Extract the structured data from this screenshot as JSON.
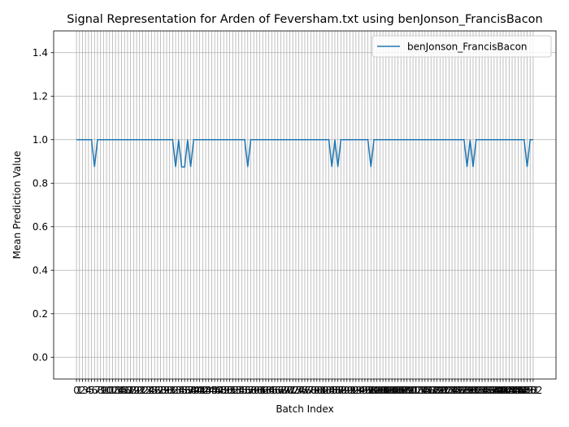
{
  "chart_data": {
    "type": "line",
    "title": "Signal Representation for Arden of Feversham.txt using benJonson_FrancisBacon",
    "xlabel": "Batch Index",
    "ylabel": "Mean Prediction Value",
    "x": [
      0,
      1,
      2,
      3,
      4,
      5,
      6,
      7,
      8,
      9,
      10,
      11,
      12,
      13,
      14,
      15,
      16,
      17,
      18,
      19,
      20,
      21,
      22,
      23,
      24,
      25,
      26,
      27,
      28,
      29,
      30,
      31,
      32,
      33,
      34,
      35,
      36,
      37,
      38,
      39,
      40,
      41,
      42,
      43,
      44,
      45,
      46,
      47,
      48,
      49,
      50,
      51,
      52,
      53,
      54,
      55,
      56,
      57,
      58,
      59,
      60,
      61,
      62,
      63,
      64,
      65,
      66,
      67,
      68,
      69,
      70,
      71,
      72,
      73,
      74,
      75,
      76,
      77,
      78,
      79,
      80,
      81,
      82,
      83,
      84,
      85,
      86,
      87,
      88,
      89,
      90,
      91,
      92,
      93,
      94,
      95,
      96,
      97,
      98,
      99,
      100,
      101,
      102,
      103,
      104,
      105,
      106,
      107,
      108,
      109,
      110,
      111,
      112,
      113,
      114,
      115,
      116,
      117,
      118,
      119,
      120,
      121,
      122,
      123,
      124,
      125,
      126,
      127,
      128,
      129,
      130,
      131,
      132,
      133,
      134,
      135,
      136,
      137,
      138,
      139,
      140,
      141,
      142,
      143,
      144,
      145,
      146,
      147,
      148,
      149,
      150,
      151,
      152
    ],
    "series": [
      {
        "name": "benJonson_FrancisBacon",
        "color": "#1f77b4",
        "values": [
          1,
          1,
          1,
          1,
          1,
          1,
          0.875,
          1,
          1,
          1,
          1,
          1,
          1,
          1,
          1,
          1,
          1,
          1,
          1,
          1,
          1,
          1,
          1,
          1,
          1,
          1,
          1,
          1,
          1,
          1,
          1,
          1,
          1,
          0.875,
          1,
          0.875,
          0.875,
          1,
          0.875,
          1,
          1,
          1,
          1,
          1,
          1,
          1,
          1,
          1,
          1,
          1,
          1,
          1,
          1,
          1,
          1,
          1,
          1,
          0.875,
          1,
          1,
          1,
          1,
          1,
          1,
          1,
          1,
          1,
          1,
          1,
          1,
          1,
          1,
          1,
          1,
          1,
          1,
          1,
          1,
          1,
          1,
          1,
          1,
          1,
          1,
          1,
          0.875,
          1,
          0.875,
          1,
          1,
          1,
          1,
          1,
          1,
          1,
          1,
          1,
          1,
          0.875,
          1,
          1,
          1,
          1,
          1,
          1,
          1,
          1,
          1,
          1,
          1,
          1,
          1,
          1,
          1,
          1,
          1,
          1,
          1,
          1,
          1,
          1,
          1,
          1,
          1,
          1,
          1,
          1,
          1,
          1,
          1,
          0.875,
          1,
          0.875,
          1,
          1,
          1,
          1,
          1,
          1,
          1,
          1,
          1,
          1,
          1,
          1,
          1,
          1,
          1,
          1,
          1,
          0.875,
          1,
          1
        ]
      }
    ],
    "xlim": [
      -7.6,
      159.6
    ],
    "xticks": [
      0,
      1,
      2,
      3,
      4,
      5,
      6,
      7,
      8,
      9,
      10,
      11,
      12,
      13,
      14,
      15,
      16,
      17,
      18,
      19,
      20,
      21,
      22,
      23,
      24,
      25,
      26,
      27,
      28,
      29,
      30,
      31,
      32,
      33,
      34,
      35,
      36,
      37,
      38,
      39,
      40,
      41,
      42,
      43,
      44,
      45,
      46,
      47,
      48,
      49,
      50,
      51,
      52,
      53,
      54,
      55,
      56,
      57,
      58,
      59,
      60,
      61,
      62,
      63,
      64,
      65,
      66,
      67,
      68,
      69,
      70,
      71,
      72,
      73,
      74,
      75,
      76,
      77,
      78,
      79,
      80,
      81,
      82,
      83,
      84,
      85,
      86,
      87,
      88,
      89,
      90,
      91,
      92,
      93,
      94,
      95,
      96,
      97,
      98,
      99,
      100,
      101,
      102,
      103,
      104,
      105,
      106,
      107,
      108,
      109,
      110,
      111,
      112,
      113,
      114,
      115,
      116,
      117,
      118,
      119,
      120,
      121,
      122,
      123,
      124,
      125,
      126,
      127,
      128,
      129,
      130,
      131,
      132,
      133,
      134,
      135,
      136,
      137,
      138,
      139,
      140,
      141,
      142,
      143,
      144,
      145,
      146,
      147,
      148,
      149,
      150,
      151,
      152
    ],
    "ylim": [
      -0.1,
      1.5
    ],
    "yticks": [
      {
        "value": 0,
        "label": "0.0"
      },
      {
        "value": 0.2,
        "label": "0.2"
      },
      {
        "value": 0.4,
        "label": "0.4"
      },
      {
        "value": 0.6,
        "label": "0.6"
      },
      {
        "value": 0.8,
        "label": "0.8"
      },
      {
        "value": 1.0,
        "label": "1.0"
      },
      {
        "value": 1.2,
        "label": "1.2"
      },
      {
        "value": 1.4,
        "label": "1.4"
      }
    ],
    "grid": true,
    "legend": "upper right"
  }
}
